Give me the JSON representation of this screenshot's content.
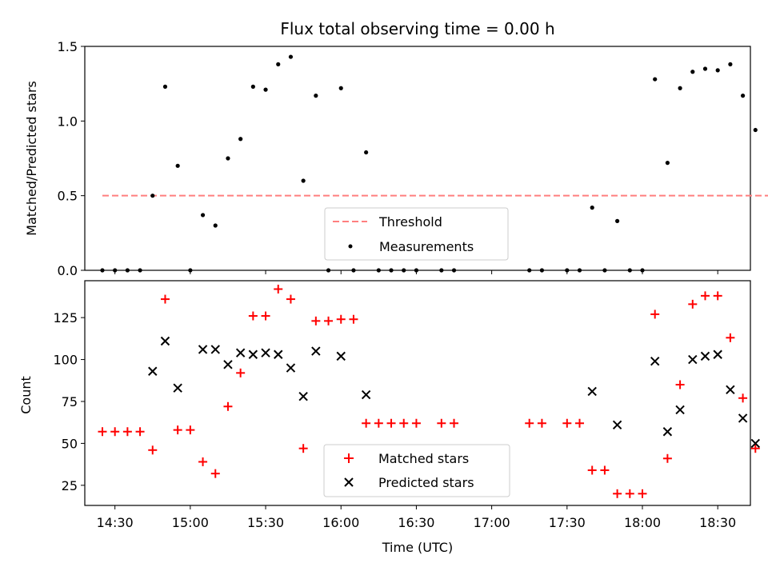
{
  "chart_data": [
    {
      "type": "scatter",
      "title": "Flux total observing time = 0.00 h",
      "xlabel": "",
      "ylabel": "Matched/Predicted stars",
      "ylim": [
        0,
        1.5
      ],
      "yticks": [
        "0.0",
        "0.5",
        "1.0",
        "1.5"
      ],
      "legend_position": "bottom-center",
      "series": [
        {
          "name": "Threshold",
          "style": "dashed-line",
          "color": "#ff7f7f",
          "x": [
            "14:25",
            "18:50"
          ],
          "values": [
            0.5,
            0.5
          ]
        },
        {
          "name": "Measurements",
          "style": "dot",
          "color": "#000000",
          "x": [
            "14:25",
            "14:30",
            "14:35",
            "14:40",
            "14:45",
            "14:50",
            "14:55",
            "15:00",
            "15:05",
            "15:10",
            "15:15",
            "15:20",
            "15:25",
            "15:30",
            "15:35",
            "15:40",
            "15:45",
            "15:50",
            "15:55",
            "16:00",
            "16:05",
            "16:10",
            "16:15",
            "16:20",
            "16:25",
            "16:30",
            "16:40",
            "16:45",
            "17:15",
            "17:20",
            "17:30",
            "17:35",
            "17:40",
            "17:45",
            "17:50",
            "17:55",
            "18:00",
            "18:05",
            "18:10",
            "18:15",
            "18:20",
            "18:25",
            "18:30",
            "18:35",
            "18:40",
            "18:45"
          ],
          "values": [
            0,
            0,
            0,
            0,
            0.5,
            1.23,
            0.7,
            0,
            0.37,
            0.3,
            0.75,
            0.88,
            1.23,
            1.21,
            1.38,
            1.43,
            0.6,
            1.17,
            0,
            1.22,
            0,
            0.79,
            0,
            0,
            0,
            0,
            0,
            0,
            0,
            0,
            0,
            0,
            0.42,
            0,
            0.33,
            0,
            0,
            1.28,
            0.72,
            1.22,
            1.33,
            1.35,
            1.34,
            1.38,
            1.17,
            0.94
          ]
        }
      ]
    },
    {
      "type": "scatter",
      "title": "",
      "xlabel": "Time (UTC)",
      "ylabel": "Count",
      "xlim": [
        "14:18",
        "18:43"
      ],
      "xticks": [
        "14:30",
        "15:00",
        "15:30",
        "16:00",
        "16:30",
        "17:00",
        "17:30",
        "18:00",
        "18:30"
      ],
      "ylim": [
        13,
        147
      ],
      "yticks": [
        "25",
        "50",
        "75",
        "100",
        "125"
      ],
      "legend_position": "bottom-center",
      "series": [
        {
          "name": "Matched stars",
          "marker": "+",
          "color": "#ff0000",
          "x": [
            "14:25",
            "14:30",
            "14:35",
            "14:40",
            "14:45",
            "14:50",
            "14:55",
            "15:00",
            "15:05",
            "15:10",
            "15:15",
            "15:20",
            "15:25",
            "15:30",
            "15:35",
            "15:40",
            "15:45",
            "15:50",
            "15:55",
            "16:00",
            "16:05",
            "16:10",
            "16:15",
            "16:20",
            "16:25",
            "16:30",
            "16:40",
            "16:45",
            "17:15",
            "17:20",
            "17:30",
            "17:35",
            "17:40",
            "17:45",
            "17:50",
            "17:55",
            "18:00",
            "18:05",
            "18:10",
            "18:15",
            "18:20",
            "18:25",
            "18:30",
            "18:35",
            "18:40",
            "18:45"
          ],
          "values": [
            57,
            57,
            57,
            57,
            46,
            136,
            58,
            58,
            39,
            32,
            72,
            92,
            126,
            126,
            142,
            136,
            47,
            123,
            123,
            124,
            124,
            62,
            62,
            62,
            62,
            62,
            62,
            62,
            62,
            62,
            62,
            62,
            34,
            34,
            20,
            20,
            20,
            127,
            41,
            85,
            133,
            138,
            138,
            113,
            77,
            47
          ]
        },
        {
          "name": "Predicted stars",
          "marker": "x",
          "color": "#000000",
          "x": [
            "14:45",
            "14:50",
            "14:55",
            "15:05",
            "15:10",
            "15:15",
            "15:20",
            "15:25",
            "15:30",
            "15:35",
            "15:40",
            "15:45",
            "15:50",
            "16:00",
            "16:10",
            "17:40",
            "17:50",
            "18:05",
            "18:10",
            "18:15",
            "18:20",
            "18:25",
            "18:30",
            "18:35",
            "18:40",
            "18:45"
          ],
          "values": [
            93,
            111,
            83,
            106,
            106,
            97,
            104,
            103,
            104,
            103,
            95,
            78,
            105,
            102,
            79,
            81,
            61,
            99,
            57,
            70,
            100,
            102,
            103,
            82,
            65,
            50
          ]
        }
      ]
    }
  ]
}
